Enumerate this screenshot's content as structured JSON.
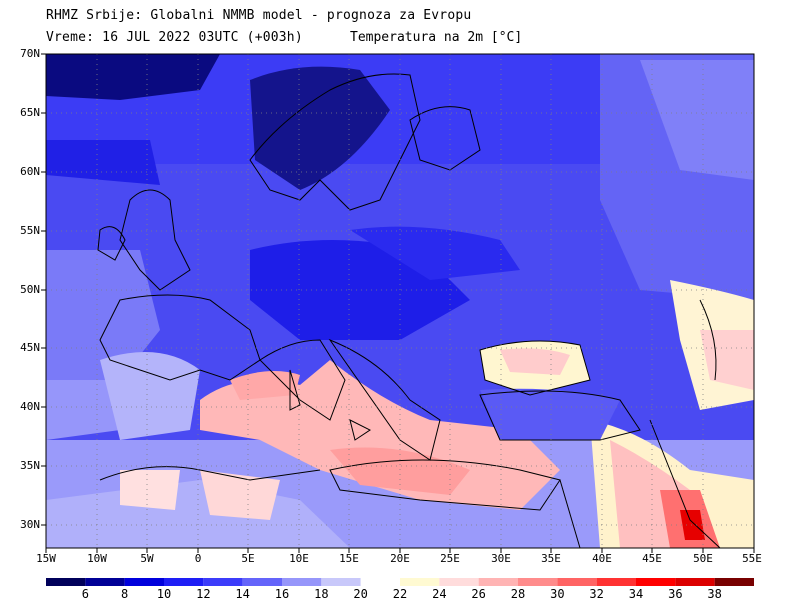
{
  "header": {
    "line1": "RHMZ Srbije: Globalni NMMB model - prognoza za Evropu",
    "line2_left": "Vreme: 16 JUL 2022 03UTC (+003h)",
    "line2_right": "Temperatura na 2m [°C]"
  },
  "map": {
    "lat_labels": [
      "70N",
      "65N",
      "60N",
      "55N",
      "50N",
      "45N",
      "40N",
      "35N",
      "30N"
    ],
    "lon_labels": [
      "15W",
      "10W",
      "5W",
      "0",
      "5E",
      "10E",
      "15E",
      "20E",
      "25E",
      "30E",
      "35E",
      "40E",
      "45E",
      "50E",
      "55E"
    ],
    "lat_range": [
      28,
      70
    ],
    "lon_range": [
      -15,
      55
    ],
    "gridlines": "dotted",
    "field": "2m temperature"
  },
  "colorbar": {
    "labels": [
      "6",
      "8",
      "10",
      "12",
      "14",
      "16",
      "18",
      "20",
      "22",
      "24",
      "26",
      "28",
      "30",
      "32",
      "34",
      "36",
      "38"
    ],
    "colors": [
      "#00005a",
      "#000096",
      "#0000dc",
      "#1e1ef5",
      "#3c3cfa",
      "#6464fa",
      "#9696fa",
      "#c8c8fa",
      "#ffffff",
      "#fffad2",
      "#ffdcdc",
      "#ffb4b4",
      "#ff8c8c",
      "#ff6464",
      "#ff3232",
      "#ff0000",
      "#dc0000",
      "#780000"
    ]
  }
}
